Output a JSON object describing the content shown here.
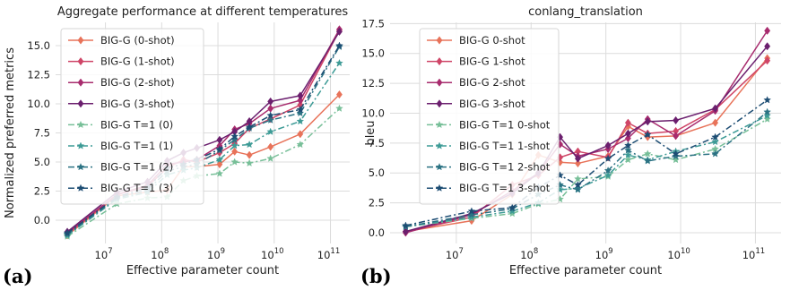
{
  "colors": {
    "grid": "#dcdcdc",
    "background": "#ffffff",
    "series": [
      "#e8735a",
      "#cf4567",
      "#a82c6e",
      "#6b1f6e",
      "#77bf98",
      "#3d9b96",
      "#2b7283",
      "#1d4d73"
    ]
  },
  "chart_data": [
    {
      "type": "line",
      "panel_label": "(a)",
      "title": "Aggregate performance at different temperatures",
      "xlabel": "Effective parameter count",
      "ylabel": "Normalized preferred metrics",
      "xscale": "log",
      "xlim": [
        1300000.0,
        220000000000.0
      ],
      "ylim": [
        -2.0,
        17.0
      ],
      "xticks": [
        {
          "value": 10000000.0,
          "base": "10",
          "exp": "7"
        },
        {
          "value": 100000000.0,
          "base": "10",
          "exp": "8"
        },
        {
          "value": 1000000000.0,
          "base": "10",
          "exp": "9"
        },
        {
          "value": 10000000000.0,
          "base": "10",
          "exp": "10"
        },
        {
          "value": 100000000000.0,
          "base": "10",
          "exp": "11"
        }
      ],
      "yticks": [
        0.0,
        2.5,
        5.0,
        7.5,
        10.0,
        12.5,
        15.0
      ],
      "ytick_labels": [
        "0.0",
        "2.5",
        "5.0",
        "7.5",
        "10.0",
        "12.5",
        "15.0"
      ],
      "grid": true,
      "legend_position": "upper-left",
      "x": [
        2100000.0,
        16000000.0,
        56000000.0,
        125000000.0,
        244000000.0,
        422000000.0,
        1070000000.0,
        1980000000.0,
        3620000000.0,
        8600000000.0,
        29000000000.0,
        144000000000.0
      ],
      "series": [
        {
          "name": "BIG-G (0-shot)",
          "marker": "diamond",
          "dash": "solid",
          "values": [
            -1.3,
            2.1,
            2.4,
            2.6,
            4.6,
            4.6,
            4.8,
            5.9,
            5.6,
            6.3,
            7.4,
            10.8
          ]
        },
        {
          "name": "BIG-G (1-shot)",
          "marker": "diamond",
          "dash": "solid",
          "values": [
            -1.2,
            2.2,
            2.9,
            4.5,
            5.2,
            5.0,
            5.8,
            6.6,
            7.9,
            8.7,
            9.9,
            16.3
          ]
        },
        {
          "name": "BIG-G (2-shot)",
          "marker": "diamond",
          "dash": "solid",
          "values": [
            -1.1,
            2.2,
            3.0,
            4.8,
            5.0,
            5.2,
            6.4,
            7.8,
            8.3,
            9.6,
            10.3,
            16.4
          ]
        },
        {
          "name": "BIG-G (3-shot)",
          "marker": "diamond",
          "dash": "solid",
          "values": [
            -1.0,
            2.4,
            3.3,
            5.1,
            5.8,
            6.2,
            6.9,
            7.6,
            8.5,
            10.2,
            10.7,
            16.2
          ]
        },
        {
          "name": "BIG-G T=1 (0)",
          "marker": "star",
          "dash": "dashdot",
          "values": [
            -1.4,
            1.4,
            1.9,
            2.0,
            3.4,
            3.8,
            4.0,
            5.0,
            4.9,
            5.3,
            6.5,
            9.6
          ]
        },
        {
          "name": "BIG-G T=1 (1)",
          "marker": "star",
          "dash": "dashdot",
          "values": [
            -1.3,
            1.8,
            2.4,
            3.9,
            4.3,
            4.5,
            5.2,
            6.4,
            6.5,
            7.6,
            8.5,
            13.5
          ]
        },
        {
          "name": "BIG-G T=1 (2)",
          "marker": "star",
          "dash": "dashdot",
          "values": [
            -1.2,
            1.9,
            2.6,
            4.2,
            4.6,
            4.8,
            6.0,
            6.9,
            7.9,
            8.6,
            9.2,
            14.9
          ]
        },
        {
          "name": "BIG-G T=1 (3)",
          "marker": "star",
          "dash": "dashdot",
          "values": [
            -1.1,
            2.0,
            2.8,
            4.5,
            4.8,
            5.2,
            6.1,
            7.2,
            8.0,
            9.0,
            9.5,
            15.0
          ]
        }
      ]
    },
    {
      "type": "line",
      "panel_label": "(b)",
      "title": "conlang_translation",
      "xlabel": "Effective parameter count",
      "ylabel": "bleu",
      "xscale": "log",
      "xlim": [
        1300000.0,
        220000000000.0
      ],
      "ylim": [
        -0.9,
        17.6
      ],
      "xticks": [
        {
          "value": 10000000.0,
          "base": "10",
          "exp": "7"
        },
        {
          "value": 100000000.0,
          "base": "10",
          "exp": "8"
        },
        {
          "value": 1000000000.0,
          "base": "10",
          "exp": "9"
        },
        {
          "value": 10000000000.0,
          "base": "10",
          "exp": "10"
        },
        {
          "value": 100000000000.0,
          "base": "10",
          "exp": "11"
        }
      ],
      "yticks": [
        0.0,
        2.5,
        5.0,
        7.5,
        10.0,
        12.5,
        15.0,
        17.5
      ],
      "ytick_labels": [
        "0.0",
        "2.5",
        "5.0",
        "7.5",
        "10.0",
        "12.5",
        "15.0",
        "17.5"
      ],
      "grid": true,
      "legend_position": "upper-left",
      "x": [
        2100000.0,
        16000000.0,
        56000000.0,
        125000000.0,
        244000000.0,
        422000000.0,
        1070000000.0,
        1980000000.0,
        3620000000.0,
        8600000000.0,
        29000000000.0,
        144000000000.0
      ],
      "series": [
        {
          "name": "BIG-G 0-shot",
          "marker": "diamond",
          "dash": "solid",
          "values": [
            0.1,
            1.0,
            3.2,
            6.5,
            5.9,
            5.8,
            6.4,
            8.9,
            8.0,
            8.1,
            9.2,
            14.6
          ]
        },
        {
          "name": "BIG-G 1-shot",
          "marker": "diamond",
          "dash": "solid",
          "values": [
            0.1,
            1.3,
            4.0,
            4.8,
            6.3,
            6.8,
            6.3,
            9.2,
            8.3,
            8.5,
            10.3,
            14.4
          ]
        },
        {
          "name": "BIG-G 2-shot",
          "marker": "diamond",
          "dash": "solid",
          "values": [
            0.0,
            1.5,
            3.5,
            5.0,
            7.4,
            6.4,
            7.0,
            7.9,
            9.5,
            8.1,
            10.2,
            16.9
          ]
        },
        {
          "name": "BIG-G 3-shot",
          "marker": "diamond",
          "dash": "solid",
          "values": [
            0.1,
            1.6,
            3.3,
            5.0,
            8.0,
            6.2,
            7.3,
            8.3,
            9.3,
            9.4,
            10.4,
            15.6
          ]
        },
        {
          "name": "BIG-G T=1 0-shot",
          "marker": "star",
          "dash": "dashdot",
          "values": [
            0.5,
            1.2,
            1.6,
            2.4,
            2.8,
            4.5,
            4.7,
            6.1,
            6.6,
            6.1,
            7.0,
            9.5
          ]
        },
        {
          "name": "BIG-G T=1 1-shot",
          "marker": "star",
          "dash": "dashdot",
          "values": [
            0.5,
            1.3,
            1.8,
            2.5,
            3.6,
            3.7,
            4.8,
            6.5,
            6.1,
            6.8,
            7.6,
            9.8
          ]
        },
        {
          "name": "BIG-G T=1 2-shot",
          "marker": "star",
          "dash": "dashdot",
          "values": [
            0.5,
            1.5,
            2.0,
            3.2,
            4.0,
            3.6,
            5.2,
            6.9,
            6.0,
            6.4,
            6.6,
            10.1
          ]
        },
        {
          "name": "BIG-G T=1 3-shot",
          "marker": "star",
          "dash": "dashdot",
          "values": [
            0.6,
            1.8,
            2.1,
            3.8,
            4.8,
            4.0,
            6.2,
            7.3,
            8.2,
            6.6,
            8.0,
            11.1
          ]
        }
      ]
    }
  ]
}
